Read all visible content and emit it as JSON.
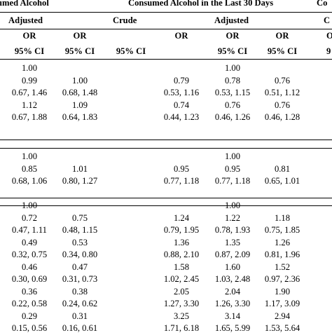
{
  "header": {
    "group1": "umed Alcohol",
    "group2": "Consumed Alcohol in the Last 30 Days",
    "group3": "Co",
    "sub_adjusted_left": "Adjusted",
    "sub_crude": "Crude",
    "sub_adjusted_mid": "Adjusted",
    "sub_c_partial": "C",
    "or_labels": [
      "OR",
      "OR",
      "OR",
      "OR",
      "OR"
    ],
    "or_partial": "O",
    "ci_labels": [
      "95% CI",
      "95% CI",
      "95% CI",
      "95% CI",
      "95% CI"
    ],
    "ci_partial": "9"
  },
  "rows": [
    [
      "1.00",
      "",
      "",
      "1.00",
      ""
    ],
    [
      "0.99",
      "1.00",
      "0.79",
      "0.78",
      "0.76"
    ],
    [
      "0.67, 1.46",
      "0.68, 1.48",
      "0.53, 1.16",
      "0.53, 1.15",
      "0.51, 1.12"
    ],
    [
      "1.12",
      "1.09",
      "0.74",
      "0.76",
      "0.76"
    ],
    [
      "0.67, 1.88",
      "0.64, 1.83",
      "0.44, 1.23",
      "0.46, 1.26",
      "0.46, 1.28"
    ],
    [
      "1.00",
      "",
      "",
      "1.00",
      ""
    ],
    [
      "0.85",
      "1.01",
      "0.95",
      "0.95",
      "0.81"
    ],
    [
      "0.68, 1.06",
      "0.80, 1.27",
      "0.77, 1.18",
      "0.77, 1.18",
      "0.65, 1.01"
    ],
    [
      "1.00",
      "",
      "",
      "1.00",
      ""
    ],
    [
      "0.72",
      "0.75",
      "1.24",
      "1.22",
      "1.18"
    ],
    [
      "0.47, 1.11",
      "0.48, 1.15",
      "0.79, 1.95",
      "0.78, 1.93",
      "0.75, 1.85"
    ],
    [
      "0.49",
      "0.53",
      "1.36",
      "1.35",
      "1.26"
    ],
    [
      "0.32, 0.75",
      "0.34, 0.80",
      "0.88, 2.10",
      "0.87, 2.09",
      "0.81, 1.96"
    ],
    [
      "0.46",
      "0.47",
      "1.58",
      "1.60",
      "1.52"
    ],
    [
      "0.30, 0.69",
      "0.31, 0.73",
      "1.02, 2.45",
      "1.03, 2.48",
      "0.97, 2.36"
    ],
    [
      "0.36",
      "0.38",
      "2.05",
      "2.04",
      "1.90"
    ],
    [
      "0.22, 0.58",
      "0.24, 0.62",
      "1.27, 3.30",
      "1.26, 3.30",
      "1.17, 3.09"
    ],
    [
      "0.29",
      "0.31",
      "3.25",
      "3.14",
      "2.94"
    ],
    [
      "0.15, 0.56",
      "0.16, 0.61",
      "1.71, 6.18",
      "1.65, 5.99",
      "1.53, 5.64"
    ]
  ]
}
